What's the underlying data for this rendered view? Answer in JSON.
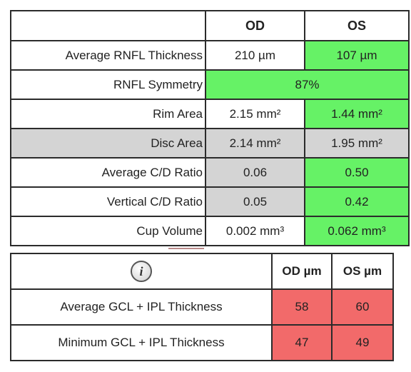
{
  "rnfl_table": {
    "headers": {
      "od": "OD",
      "os": "OS"
    },
    "rows": {
      "avg_rnfl": {
        "label": "Average RNFL Thickness",
        "od": "210 µm",
        "os": "107 µm"
      },
      "symmetry": {
        "label": "RNFL Symmetry",
        "value": "87%"
      },
      "rim_area": {
        "label": "Rim Area",
        "od": "2.15 mm²",
        "os": "1.44 mm²"
      },
      "disc_area": {
        "label": "Disc Area",
        "od": "2.14 mm²",
        "os": "1.95 mm²"
      },
      "avg_cd": {
        "label": "Average C/D Ratio",
        "od": "0.06",
        "os": "0.50"
      },
      "vert_cd": {
        "label": "Vertical C/D Ratio",
        "od": "0.05",
        "os": "0.42"
      },
      "cup_volume": {
        "label": "Cup Volume",
        "od": "0.002 mm³",
        "os": "0.062 mm³"
      }
    }
  },
  "gcl_table": {
    "info_symbol": "i",
    "headers": {
      "od": "OD µm",
      "os": "OS µm"
    },
    "rows": {
      "avg": {
        "label": "Average GCL + IPL Thickness",
        "od": "58",
        "os": "60"
      },
      "min": {
        "label": "Minimum GCL + IPL Thickness",
        "od": "47",
        "os": "49"
      }
    }
  },
  "colors": {
    "normal": "#66f266",
    "borderline": "#d4d4d4",
    "abnormal": "#f26a6a"
  }
}
